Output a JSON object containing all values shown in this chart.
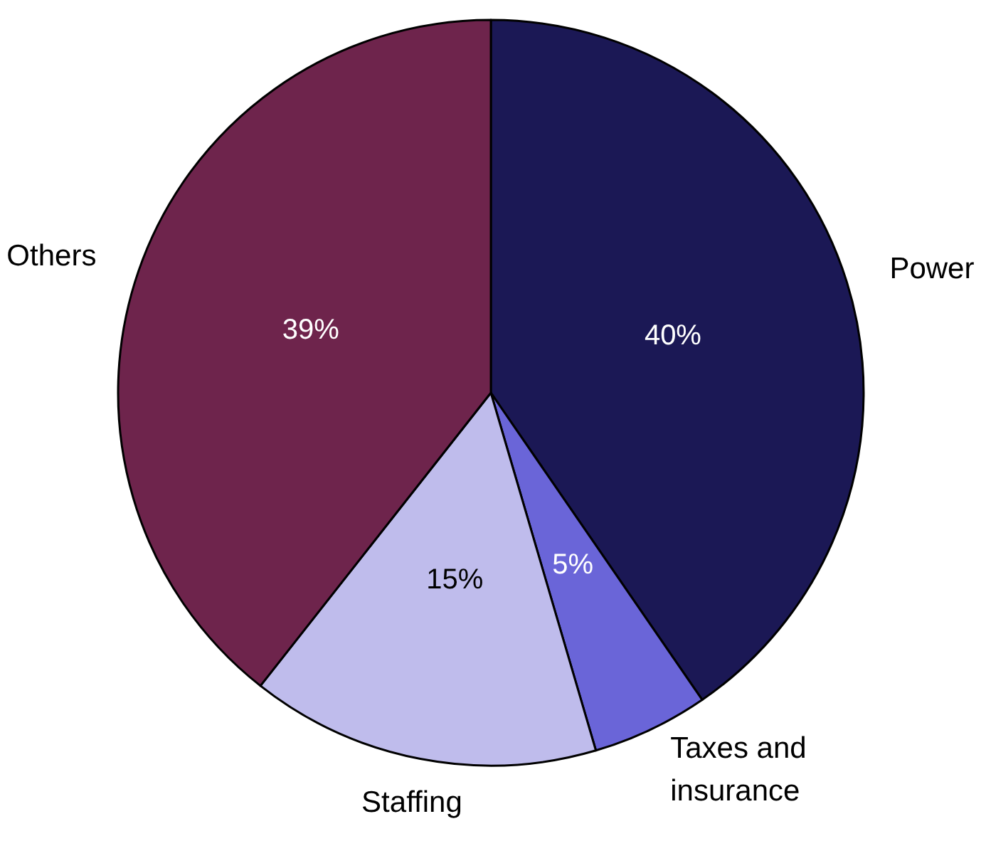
{
  "chart_data": {
    "type": "pie",
    "categories": [
      "Power",
      "Taxes and\ninsurance",
      "Staffing",
      "Others"
    ],
    "values": [
      40,
      5,
      15,
      39
    ],
    "colors": [
      "#1b1855",
      "#6a65d8",
      "#bfbcec",
      "#6e244c"
    ],
    "value_labels": [
      "40%",
      "5%",
      "15%",
      "39%"
    ],
    "legend": false
  }
}
